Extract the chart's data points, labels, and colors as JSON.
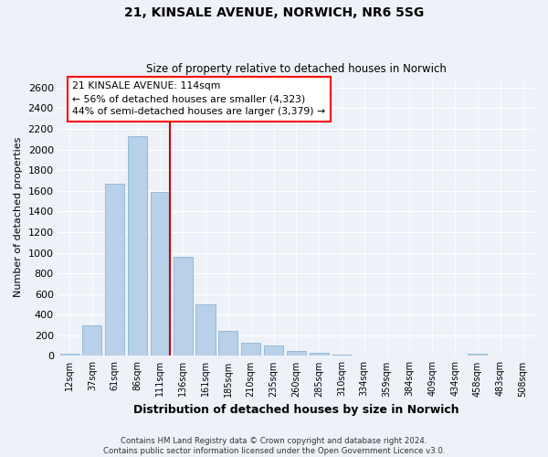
{
  "title_line1": "21, KINSALE AVENUE, NORWICH, NR6 5SG",
  "title_line2": "Size of property relative to detached houses in Norwich",
  "xlabel": "Distribution of detached houses by size in Norwich",
  "ylabel": "Number of detached properties",
  "footer_line1": "Contains HM Land Registry data © Crown copyright and database right 2024.",
  "footer_line2": "Contains public sector information licensed under the Open Government Licence v3.0.",
  "annotation_line1": "21 KINSALE AVENUE: 114sqm",
  "annotation_line2": "← 56% of detached houses are smaller (4,323)",
  "annotation_line3": "44% of semi-detached houses are larger (3,379) →",
  "bar_color": "#b8d0e8",
  "bar_edge_color": "#89b4d4",
  "marker_color": "#cc0000",
  "background_color": "#eef2f8",
  "categories": [
    "12sqm",
    "37sqm",
    "61sqm",
    "86sqm",
    "111sqm",
    "136sqm",
    "161sqm",
    "185sqm",
    "210sqm",
    "235sqm",
    "260sqm",
    "285sqm",
    "310sqm",
    "334sqm",
    "359sqm",
    "384sqm",
    "409sqm",
    "434sqm",
    "458sqm",
    "483sqm",
    "508sqm"
  ],
  "values": [
    20,
    295,
    1665,
    2130,
    1590,
    960,
    500,
    245,
    130,
    100,
    50,
    30,
    10,
    5,
    3,
    3,
    3,
    3,
    20,
    3,
    2
  ],
  "marker_index": 4,
  "ylim": [
    0,
    2700
  ],
  "yticks": [
    0,
    200,
    400,
    600,
    800,
    1000,
    1200,
    1400,
    1600,
    1800,
    2000,
    2200,
    2400,
    2600
  ]
}
